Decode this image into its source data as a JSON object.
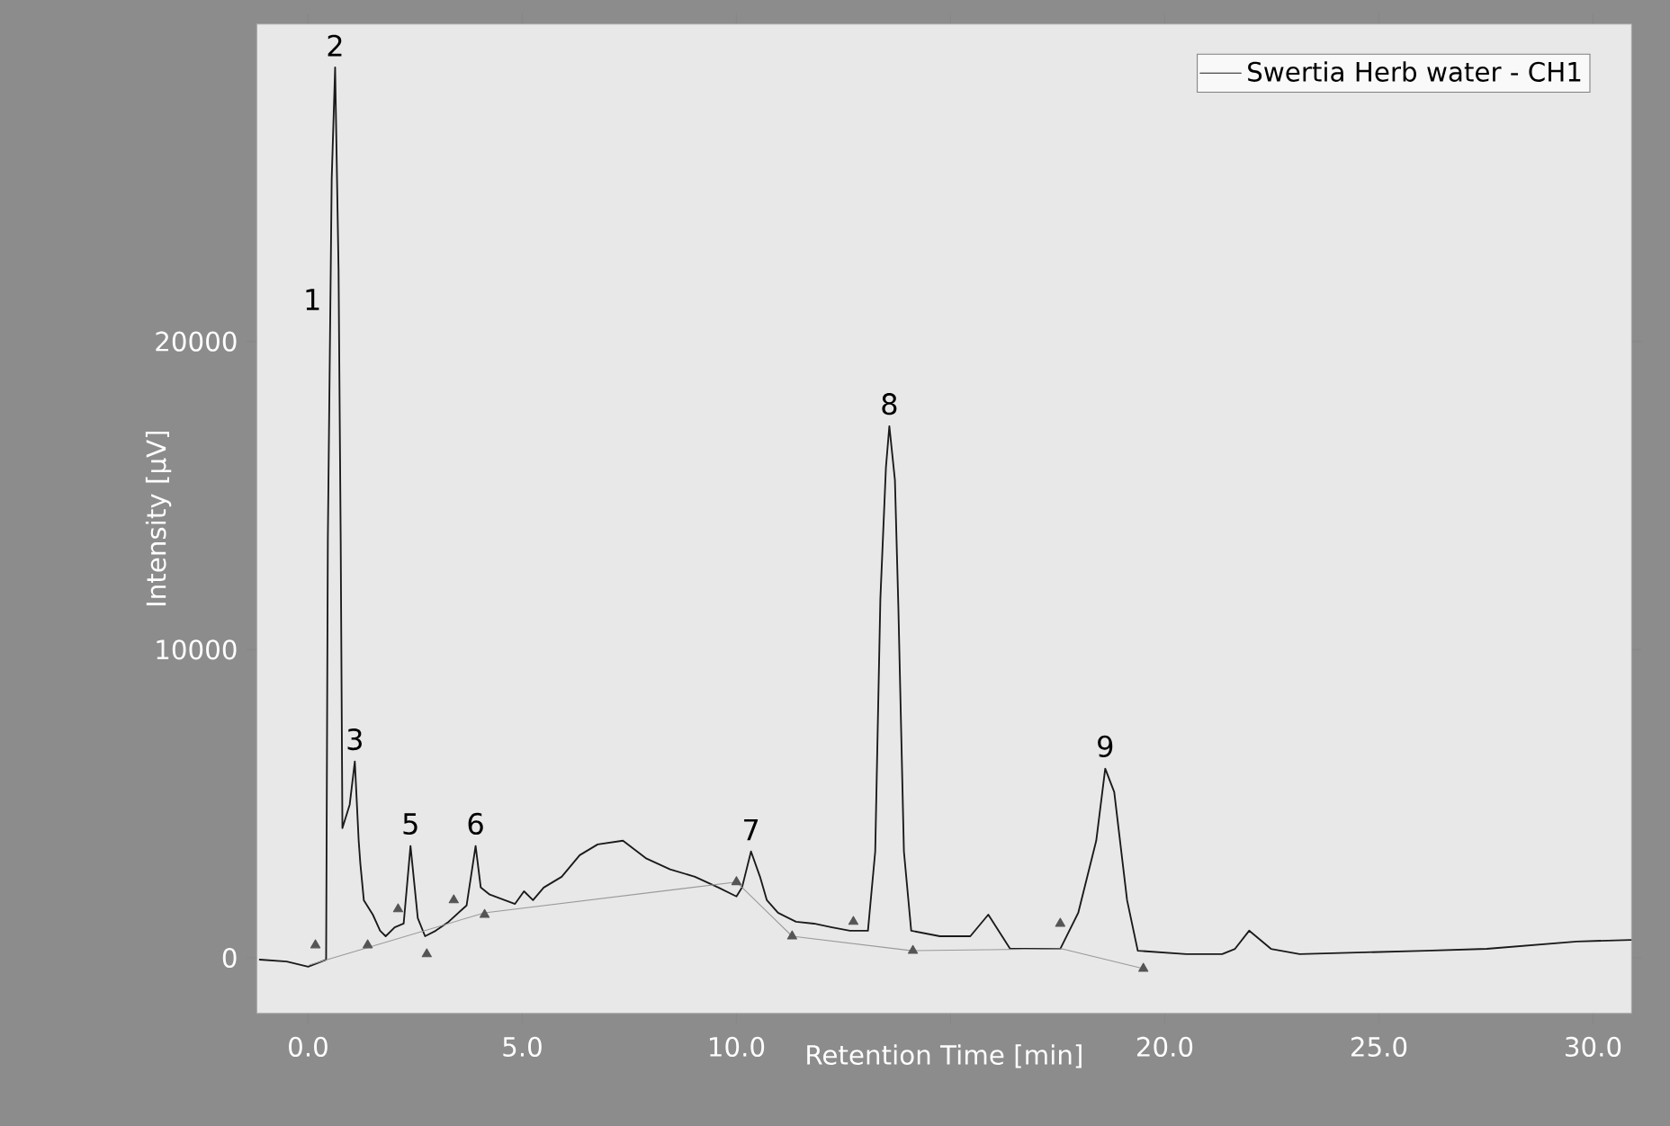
{
  "chart_data": {
    "type": "line",
    "xlabel": "Retention Time [min]",
    "ylabel": "Intensity [μV]",
    "xlim": [
      -1.2,
      30.9
    ],
    "ylim": [
      -1800,
      30300
    ],
    "xticks": [
      {
        "value": 0,
        "label": "0.0"
      },
      {
        "value": 5,
        "label": "5.0"
      },
      {
        "value": 10,
        "label": "10.0"
      },
      {
        "value": 15,
        "label": null
      },
      {
        "value": 20,
        "label": "20.0"
      },
      {
        "value": 25,
        "label": "25.0"
      },
      {
        "value": 30,
        "label": "30.0"
      }
    ],
    "yticks": [
      0,
      10000,
      20000
    ],
    "legend": "top right",
    "series": [
      {
        "name": "Swertia Herb water - CH1",
        "color": "#1a1a1a",
        "marker": "none",
        "x": [
          -1.13,
          -0.5,
          0.0,
          0.42,
          0.46,
          0.52,
          0.55,
          0.63,
          0.71,
          0.76,
          0.8,
          0.97,
          1.09,
          1.18,
          1.22,
          1.3,
          1.51,
          1.68,
          1.81,
          2.02,
          2.23,
          2.39,
          2.56,
          2.73,
          2.98,
          3.28,
          3.7,
          3.91,
          4.03,
          4.24,
          4.83,
          5.04,
          5.25,
          5.5,
          5.92,
          6.34,
          6.76,
          7.35,
          7.9,
          8.45,
          9.03,
          9.58,
          10.0,
          10.13,
          10.34,
          10.55,
          10.71,
          10.97,
          11.39,
          11.81,
          12.23,
          12.65,
          13.07,
          13.24,
          13.36,
          13.49,
          13.57,
          13.7,
          13.78,
          13.91,
          14.08,
          14.75,
          15.46,
          15.88,
          16.39,
          17.56,
          17.98,
          18.4,
          18.61,
          18.82,
          19.12,
          19.37,
          20.5,
          21.34,
          21.64,
          21.97,
          22.48,
          23.15,
          26.09,
          27.52,
          29.62,
          30.88
        ],
        "values": [
          -60,
          -120,
          -290,
          -60,
          13570,
          21360,
          25260,
          28890,
          22340,
          13570,
          4210,
          4970,
          6370,
          3800,
          3040,
          1870,
          1400,
          880,
          700,
          990,
          1110,
          3630,
          1290,
          700,
          880,
          1170,
          1700,
          3630,
          2280,
          2050,
          1750,
          2160,
          1870,
          2280,
          2630,
          3330,
          3680,
          3800,
          3220,
          2870,
          2630,
          2280,
          1990,
          2280,
          3450,
          2630,
          1870,
          1460,
          1170,
          1110,
          990,
          880,
          880,
          3450,
          11640,
          15910,
          17250,
          15500,
          11400,
          3450,
          880,
          700,
          700,
          1400,
          290,
          290,
          1460,
          3800,
          6140,
          5380,
          1870,
          230,
          120,
          120,
          290,
          880,
          290,
          120,
          230,
          290,
          530,
          580
        ]
      },
      {
        "color": "#999999",
        "type": "line",
        "marker": "none",
        "x": [
          0.04,
          4.12,
          10.0,
          11.3,
          14.1,
          17.6,
          19.5
        ],
        "values": [
          -230,
          1460,
          2460,
          700,
          230,
          290,
          -350
        ]
      },
      {
        "color": "#555555",
        "type": "scatter",
        "marker": "triangle",
        "x": [
          0.17,
          2.1,
          3.4,
          10.0,
          12.73,
          17.56,
          1.39,
          2.77,
          4.12,
          11.3,
          14.12,
          19.5
        ],
        "values": [
          410,
          1580,
          1870,
          2460,
          1170,
          1110,
          410,
          120,
          1400,
          700,
          230,
          -350
        ]
      }
    ],
    "annotations": [
      {
        "text": "1",
        "x": 0.52,
        "y": 21360
      },
      {
        "text": "2",
        "x": 0.63,
        "y": 28890
      },
      {
        "text": "3",
        "x": 1.09,
        "y": 6370
      },
      {
        "text": "5",
        "x": 2.39,
        "y": 3630
      },
      {
        "text": "6",
        "x": 3.91,
        "y": 3630
      },
      {
        "text": "7",
        "x": 10.34,
        "y": 3450
      },
      {
        "text": "8",
        "x": 13.57,
        "y": 17250
      },
      {
        "text": "9",
        "x": 18.61,
        "y": 6140
      }
    ]
  }
}
